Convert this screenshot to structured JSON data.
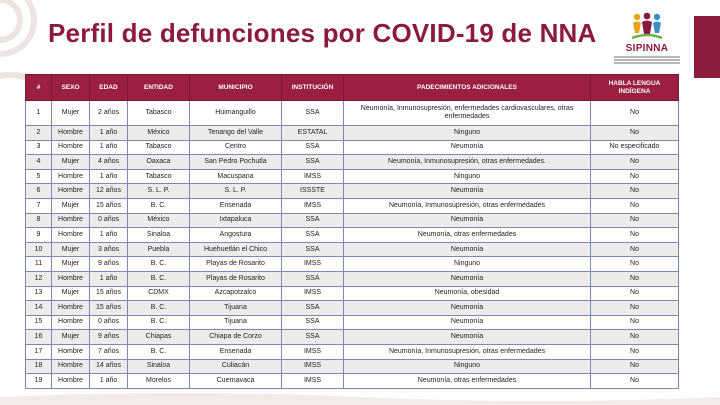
{
  "title": "Perfil de defunciones por COVID-19 de NNA",
  "logo": {
    "name": "SIPINNA",
    "icon": "sipinna-children-logo"
  },
  "colors": {
    "brand": "#8b1a3c",
    "header_bg": "#9b1f3f",
    "row_alt": "#ececec",
    "border": "#7f86b8"
  },
  "table": {
    "headers": [
      "#",
      "SEXO",
      "EDAD",
      "ENTIDAD",
      "MUNICIPIO",
      "INSTITUCIÓN",
      "PADECIMIENTOS ADICIONALES",
      "HABLA LENGUA INDÍGENA"
    ],
    "rows": [
      [
        "1",
        "Mujer",
        "2 años",
        "Tabasco",
        "Huimanguillo",
        "SSA",
        "Neumonía, Inmunosupresión, enfermedades cardiovasculares, otras enfermedades",
        "No"
      ],
      [
        "2",
        "Hombre",
        "1 año",
        "México",
        "Tenango del Valle",
        "ESTATAL",
        "Ninguno",
        "No"
      ],
      [
        "3",
        "Hombre",
        "1 año",
        "Tabasco",
        "Centro",
        "SSA",
        "Neumonía",
        "No especificado"
      ],
      [
        "4",
        "Mujer",
        "4 años",
        "Oaxaca",
        "San Pedro Pochutla",
        "SSA",
        "Neumonía, Inmunosupresión, otras enfermedades.",
        "No"
      ],
      [
        "5",
        "Hombre",
        "1 año",
        "Tabasco",
        "Macuspana",
        "IMSS",
        "Ninguno",
        "No"
      ],
      [
        "6",
        "Hombre",
        "12 años",
        "S. L. P.",
        "S. L. P.",
        "ISSSTE",
        "Neumonía",
        "No"
      ],
      [
        "7",
        "Mujer",
        "15 años",
        "B. C.",
        "Ensenada",
        "IMSS",
        "Neumonía, Inmunosupresión, otras enfermedades",
        "No"
      ],
      [
        "8",
        "Hombre",
        "0 años",
        "México",
        "Ixtapaluca",
        "SSA",
        "Neumonía",
        "No"
      ],
      [
        "9",
        "Hombre",
        "1 año",
        "Sinaloa",
        "Angostura",
        "SSA",
        "Neumonía, otras enfermedades",
        "No"
      ],
      [
        "10",
        "Mujer",
        "3 años",
        "Puebla",
        "Huehuetlán el Chico",
        "SSA",
        "Neumonía",
        "No"
      ],
      [
        "11",
        "Mujer",
        "9 años",
        "B. C.",
        "Playas de Rosarito",
        "IMSS",
        "Ninguno",
        "No"
      ],
      [
        "12",
        "Hombre",
        "1 año",
        "B. C.",
        "Playas de Rosarito",
        "SSA",
        "Neumonía",
        "No"
      ],
      [
        "13",
        "Mujer",
        "15 años",
        "CDMX",
        "Azcapotzalco",
        "IMSS",
        "Neumonía, obesidad",
        "No"
      ],
      [
        "14",
        "Hombre",
        "15 años",
        "B. C.",
        "Tijuana",
        "SSA",
        "Neumonía",
        "No"
      ],
      [
        "15",
        "Hombre",
        "0 años",
        "B. C.",
        "Tijuana",
        "SSA",
        "Neumonía",
        "No"
      ],
      [
        "16",
        "Mujer",
        "9 años",
        "Chiapas",
        "Chiapa de Corzo",
        "SSA",
        "Neumonía",
        "No"
      ],
      [
        "17",
        "Hombre",
        "7 años",
        "B. C.",
        "Ensenada",
        "IMSS",
        "Neumonía, Inmunosupresión, otras enfermedades",
        "No"
      ],
      [
        "18",
        "Hombre",
        "14 años",
        "Sinaloa",
        "Culiacán",
        "IMSS",
        "Ninguno",
        "No"
      ],
      [
        "19",
        "Hombre",
        "1 año",
        "Morelos",
        "Cuernavaca",
        "IMSS",
        "Neumonía, otras enfermedades",
        "No"
      ]
    ]
  }
}
